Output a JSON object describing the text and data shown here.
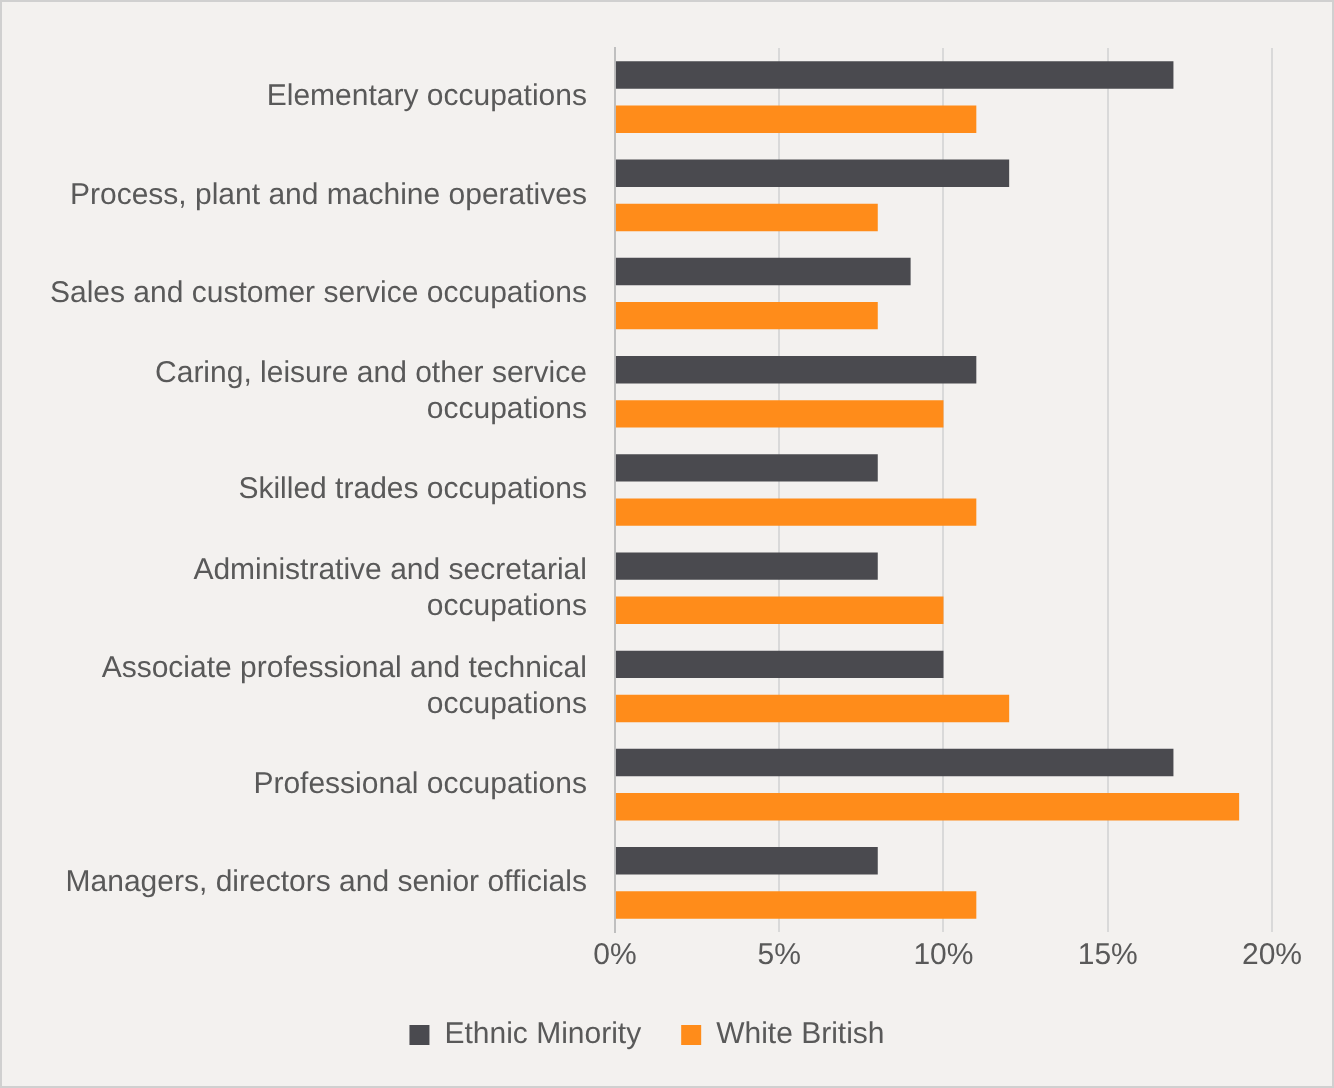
{
  "chart_data": {
    "type": "bar",
    "orientation": "horizontal",
    "categories": [
      "Elementary occupations",
      "Process, plant and machine operatives",
      "Sales and customer service occupations",
      "Caring, leisure and other service occupations",
      "Skilled trades occupations",
      "Administrative and secretarial occupations",
      "Associate professional and technical occupations",
      "Professional occupations",
      "Managers, directors and senior officials"
    ],
    "series": [
      {
        "name": "Ethnic Minority",
        "color": "#4a4a4f",
        "values": [
          17,
          12,
          9,
          11,
          8,
          8,
          10,
          17,
          8
        ]
      },
      {
        "name": "White British",
        "color": "#ff8c1a",
        "values": [
          11,
          8,
          8,
          10,
          11,
          10,
          12,
          19,
          11
        ]
      }
    ],
    "xlim": [
      0,
      20
    ],
    "xticks": [
      {
        "value": 0,
        "label": "0%"
      },
      {
        "value": 5,
        "label": "5%"
      },
      {
        "value": 10,
        "label": "10%"
      },
      {
        "value": 15,
        "label": "15%"
      },
      {
        "value": 20,
        "label": "20%"
      }
    ],
    "grid": "x",
    "legend": "bottom"
  }
}
